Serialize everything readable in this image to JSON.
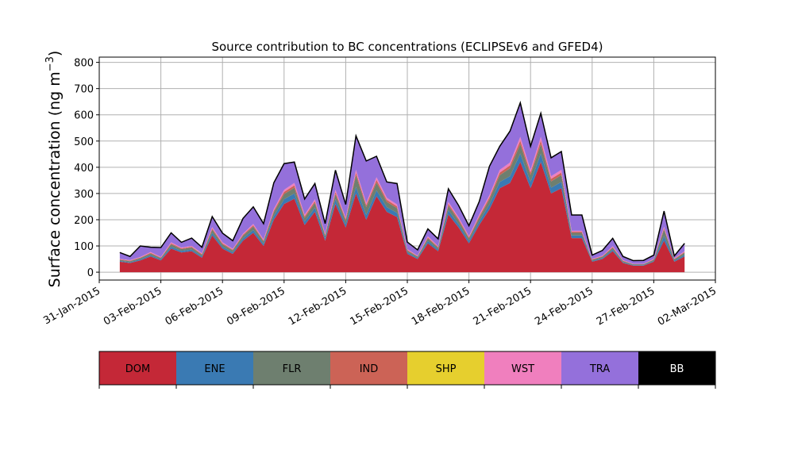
{
  "chart_data": {
    "type": "area",
    "stacked": true,
    "title": "Source contribution to BC concentrations (ECLIPSEv6 and GFED4)",
    "ylabel": "Surface concentration (ng m",
    "ylabel_sup": "−3",
    "ylabel_close": ")",
    "xlabel": "",
    "xlim": [
      "2015-01-31",
      "2015-03-02"
    ],
    "ylim": [
      -30,
      820
    ],
    "grid": true,
    "x_ticks": [
      {
        "date": "2015-01-31",
        "label": "31-Jan-2015"
      },
      {
        "date": "2015-02-03",
        "label": "03-Feb-2015"
      },
      {
        "date": "2015-02-06",
        "label": "06-Feb-2015"
      },
      {
        "date": "2015-02-09",
        "label": "09-Feb-2015"
      },
      {
        "date": "2015-02-12",
        "label": "12-Feb-2015"
      },
      {
        "date": "2015-02-15",
        "label": "15-Feb-2015"
      },
      {
        "date": "2015-02-18",
        "label": "18-Feb-2015"
      },
      {
        "date": "2015-02-21",
        "label": "21-Feb-2015"
      },
      {
        "date": "2015-02-24",
        "label": "24-Feb-2015"
      },
      {
        "date": "2015-02-27",
        "label": "27-Feb-2015"
      },
      {
        "date": "2015-03-02",
        "label": "02-Mar-2015"
      }
    ],
    "y_ticks": [
      0,
      100,
      200,
      300,
      400,
      500,
      600,
      700,
      800
    ],
    "x": [
      "2015-02-01",
      "2015-02-01T12:00",
      "2015-02-02",
      "2015-02-02T12:00",
      "2015-02-03",
      "2015-02-03T12:00",
      "2015-02-04",
      "2015-02-04T12:00",
      "2015-02-05",
      "2015-02-05T12:00",
      "2015-02-06",
      "2015-02-06T12:00",
      "2015-02-07",
      "2015-02-07T12:00",
      "2015-02-08",
      "2015-02-08T12:00",
      "2015-02-09",
      "2015-02-09T12:00",
      "2015-02-10",
      "2015-02-10T12:00",
      "2015-02-11",
      "2015-02-11T12:00",
      "2015-02-12",
      "2015-02-12T12:00",
      "2015-02-13",
      "2015-02-13T12:00",
      "2015-02-14",
      "2015-02-14T12:00",
      "2015-02-15",
      "2015-02-15T12:00",
      "2015-02-16",
      "2015-02-16T12:00",
      "2015-02-17",
      "2015-02-17T12:00",
      "2015-02-18",
      "2015-02-18T12:00",
      "2015-02-19",
      "2015-02-19T12:00",
      "2015-02-20",
      "2015-02-20T12:00",
      "2015-02-21",
      "2015-02-21T12:00",
      "2015-02-22",
      "2015-02-22T12:00",
      "2015-02-23",
      "2015-02-23T12:00",
      "2015-02-24",
      "2015-02-24T12:00",
      "2015-02-25",
      "2015-02-25T12:00",
      "2015-02-26",
      "2015-02-26T12:00",
      "2015-02-27",
      "2015-02-27T12:00",
      "2015-02-28",
      "2015-02-28T12:00"
    ],
    "series": [
      {
        "name": "DOM",
        "color": "#c42837",
        "values": [
          40,
          35,
          45,
          60,
          45,
          90,
          75,
          80,
          55,
          140,
          90,
          70,
          120,
          150,
          100,
          200,
          260,
          280,
          180,
          230,
          120,
          260,
          170,
          300,
          200,
          290,
          230,
          210,
          70,
          50,
          110,
          80,
          220,
          170,
          110,
          180,
          240,
          320,
          340,
          420,
          320,
          420,
          300,
          320,
          130,
          130,
          40,
          50,
          80,
          35,
          25,
          25,
          40,
          120,
          40,
          60
        ]
      },
      {
        "name": "ENE",
        "color": "#3a7ab3",
        "values": [
          3,
          3,
          4,
          5,
          4,
          7,
          6,
          6,
          5,
          10,
          7,
          6,
          9,
          11,
          8,
          14,
          18,
          20,
          13,
          16,
          9,
          18,
          12,
          25,
          18,
          22,
          18,
          16,
          6,
          4,
          9,
          6,
          16,
          13,
          9,
          13,
          18,
          24,
          26,
          32,
          24,
          32,
          22,
          24,
          10,
          10,
          3,
          4,
          6,
          3,
          2,
          2,
          3,
          18,
          4,
          6
        ]
      },
      {
        "name": "FLR",
        "color": "#6e7f6f",
        "values": [
          4,
          4,
          5,
          6,
          5,
          9,
          7,
          8,
          6,
          12,
          9,
          7,
          10,
          13,
          9,
          15,
          20,
          22,
          14,
          18,
          10,
          20,
          14,
          45,
          30,
          30,
          20,
          18,
          6,
          5,
          10,
          7,
          18,
          14,
          10,
          14,
          20,
          26,
          30,
          36,
          26,
          36,
          24,
          26,
          10,
          10,
          4,
          5,
          7,
          4,
          3,
          3,
          4,
          25,
          5,
          8
        ]
      },
      {
        "name": "IND",
        "color": "#cc6356",
        "values": [
          2,
          2,
          2,
          3,
          2,
          4,
          3,
          3,
          3,
          5,
          4,
          3,
          4,
          5,
          4,
          6,
          8,
          9,
          6,
          7,
          4,
          8,
          6,
          10,
          8,
          10,
          8,
          7,
          3,
          2,
          4,
          3,
          7,
          6,
          4,
          6,
          8,
          10,
          11,
          14,
          10,
          14,
          10,
          10,
          4,
          4,
          2,
          2,
          3,
          2,
          1,
          1,
          2,
          5,
          2,
          3
        ]
      },
      {
        "name": "SHP",
        "color": "#e6cf2e",
        "values": [
          0,
          0,
          0,
          0,
          0,
          0,
          0,
          0,
          0,
          0,
          0,
          0,
          0,
          0,
          0,
          0,
          0,
          0,
          0,
          0,
          0,
          0,
          0,
          0,
          0,
          0,
          0,
          0,
          0,
          0,
          0,
          0,
          0,
          0,
          0,
          0,
          0,
          0,
          0,
          0,
          0,
          0,
          0,
          0,
          0,
          0,
          0,
          0,
          0,
          0,
          0,
          0,
          0,
          0,
          0,
          0
        ]
      },
      {
        "name": "WST",
        "color": "#f07fbe",
        "values": [
          2,
          2,
          2,
          3,
          2,
          4,
          3,
          3,
          3,
          5,
          4,
          3,
          4,
          5,
          4,
          6,
          8,
          9,
          6,
          7,
          4,
          8,
          6,
          10,
          8,
          10,
          8,
          7,
          3,
          2,
          4,
          3,
          7,
          6,
          4,
          6,
          8,
          10,
          11,
          14,
          10,
          14,
          10,
          10,
          4,
          4,
          2,
          2,
          3,
          2,
          1,
          1,
          2,
          5,
          2,
          3
        ]
      },
      {
        "name": "TRA",
        "color": "#9470db",
        "values": [
          24,
          14,
          42,
          18,
          36,
          36,
          20,
          30,
          23,
          40,
          35,
          31,
          58,
          65,
          60,
          100,
          100,
          80,
          60,
          60,
          38,
          75,
          50,
          130,
          160,
          80,
          60,
          80,
          27,
          22,
          28,
          28,
          50,
          45,
          40,
          50,
          110,
          90,
          120,
          130,
          90,
          90,
          70,
          70,
          60,
          60,
          14,
          20,
          30,
          14,
          12,
          13,
          14,
          60,
          9,
          30
        ]
      },
      {
        "name": "BB",
        "color": "#000000",
        "values": [
          0,
          0,
          0,
          0,
          0,
          0,
          0,
          0,
          0,
          0,
          0,
          0,
          0,
          0,
          0,
          0,
          0,
          0,
          0,
          0,
          0,
          0,
          0,
          0,
          0,
          0,
          0,
          0,
          0,
          0,
          0,
          0,
          0,
          0,
          0,
          0,
          0,
          0,
          0,
          0,
          0,
          0,
          0,
          0,
          0,
          0,
          0,
          0,
          0,
          0,
          0,
          0,
          0,
          0,
          0,
          0
        ]
      }
    ],
    "legend_placement": "below-axes",
    "legend_entries": [
      {
        "label": "DOM",
        "color": "#c42837",
        "text_color": "#000000"
      },
      {
        "label": "ENE",
        "color": "#3a7ab3",
        "text_color": "#000000"
      },
      {
        "label": "FLR",
        "color": "#6e7f6f",
        "text_color": "#000000"
      },
      {
        "label": "IND",
        "color": "#cc6356",
        "text_color": "#000000"
      },
      {
        "label": "SHP",
        "color": "#e6cf2e",
        "text_color": "#000000"
      },
      {
        "label": "WST",
        "color": "#f07fbe",
        "text_color": "#000000"
      },
      {
        "label": "TRA",
        "color": "#9470db",
        "text_color": "#000000"
      },
      {
        "label": "BB",
        "color": "#000000",
        "text_color": "#ffffff"
      }
    ]
  }
}
